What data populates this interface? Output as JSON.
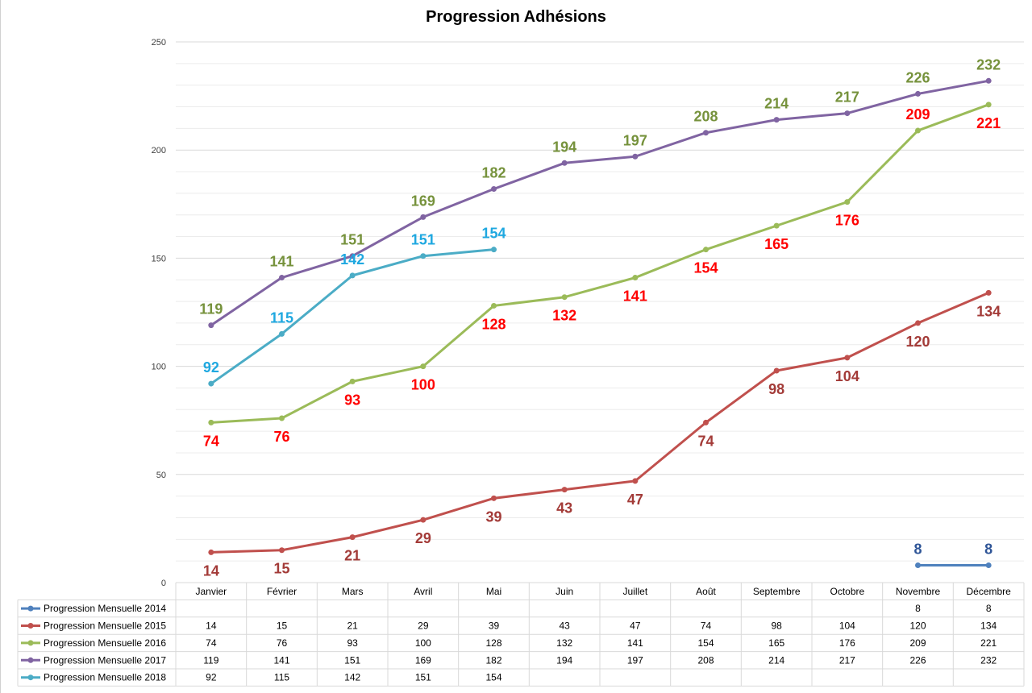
{
  "chart_data": {
    "type": "line",
    "title": "Progression Adhésions",
    "xlabel": "",
    "ylabel": "",
    "ylim": [
      0,
      250
    ],
    "yticks": [
      0,
      50,
      100,
      150,
      200,
      250
    ],
    "grid": true,
    "legend_position": "bottom (data table)",
    "categories": [
      "Janvier",
      "Février",
      "Mars",
      "Avril",
      "Mai",
      "Juin",
      "Juillet",
      "Août",
      "Septembre",
      "Octobre",
      "Novembre",
      "Décembre"
    ],
    "series": [
      {
        "name": "Progression Mensuelle 2014",
        "color": "#4F81BD",
        "label_color": "#2F5597",
        "values": [
          null,
          null,
          null,
          null,
          null,
          null,
          null,
          null,
          null,
          null,
          8,
          8
        ]
      },
      {
        "name": "Progression Mensuelle 2015",
        "color": "#C0504D",
        "label_color": "#A33B38",
        "values": [
          14,
          15,
          21,
          29,
          39,
          43,
          47,
          74,
          98,
          104,
          120,
          134
        ]
      },
      {
        "name": "Progression Mensuelle 2016",
        "color": "#9BBB59",
        "label_color": "#FF0000",
        "values": [
          74,
          76,
          93,
          100,
          128,
          132,
          141,
          154,
          165,
          176,
          209,
          221
        ]
      },
      {
        "name": "Progression Mensuelle 2017",
        "color": "#8064A2",
        "label_color": "#76923C",
        "values": [
          119,
          141,
          151,
          169,
          182,
          194,
          197,
          208,
          214,
          217,
          226,
          232
        ]
      },
      {
        "name": "Progression Mensuelle 2018",
        "color": "#4BACC6",
        "label_color": "#1FA8E0",
        "values": [
          92,
          115,
          142,
          151,
          154,
          null,
          null,
          null,
          null,
          null,
          null,
          null
        ]
      }
    ]
  }
}
